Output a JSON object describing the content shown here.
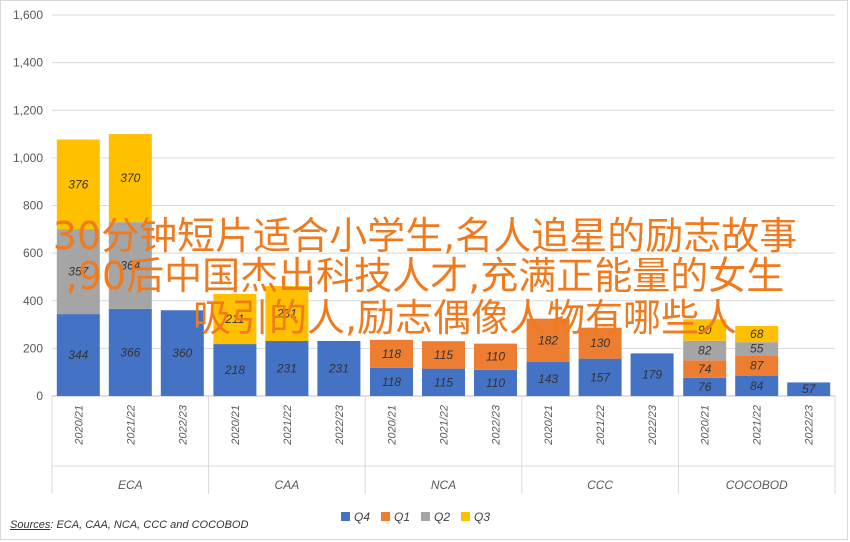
{
  "chart_data": {
    "type": "bar",
    "stacked": true,
    "groups": [
      {
        "name": "ECA",
        "years": [
          "2020/21",
          "2021/22",
          "2022/23"
        ]
      },
      {
        "name": "CAA",
        "years": [
          "2020/21",
          "2021/22",
          "2022/23"
        ]
      },
      {
        "name": "NCA",
        "years": [
          "2020/21",
          "2021/22",
          "2022/23"
        ]
      },
      {
        "name": "CCC",
        "years": [
          "2020/21",
          "2021/22",
          "2022/23"
        ]
      },
      {
        "name": "COCOBOD",
        "years": [
          "2020/21",
          "2021/22",
          "2022/23"
        ]
      }
    ],
    "series": [
      {
        "name": "Q4",
        "color": "#4472c4",
        "values": [
          344,
          366,
          360,
          218,
          231,
          231,
          118,
          115,
          110,
          143,
          157,
          179,
          76,
          84,
          57
        ]
      },
      {
        "name": "Q1",
        "color": "#ed7d31",
        "values": [
          null,
          null,
          null,
          null,
          null,
          null,
          118,
          115,
          110,
          182,
          130,
          null,
          74,
          87,
          null
        ]
      },
      {
        "name": "Q2",
        "color": "#a5a5a5",
        "values": [
          357,
          364,
          null,
          null,
          null,
          null,
          null,
          null,
          null,
          null,
          null,
          null,
          82,
          55,
          null
        ]
      },
      {
        "name": "Q3",
        "color": "#ffc000",
        "values": [
          376,
          370,
          null,
          211,
          231,
          null,
          null,
          null,
          null,
          null,
          null,
          null,
          90,
          68,
          null
        ]
      }
    ],
    "ylim": [
      0,
      1600
    ],
    "yticks": [
      "0",
      "200",
      "400",
      "600",
      "800",
      "1,000",
      "1,200",
      "1,400",
      "1,600"
    ],
    "grid": true,
    "legend_position": "bottom"
  },
  "sources": {
    "label": "Sources",
    "text": ": ECA, CAA, NCA, CCC and COCOBOD"
  },
  "overlay": {
    "line1": "30分钟短片适合小学生,名人追星的励志故事",
    "line2": ",90后中国杰出科技人才,充满正能量的女生",
    "line3": "吸引的人,励志偶像人物有哪些人"
  }
}
